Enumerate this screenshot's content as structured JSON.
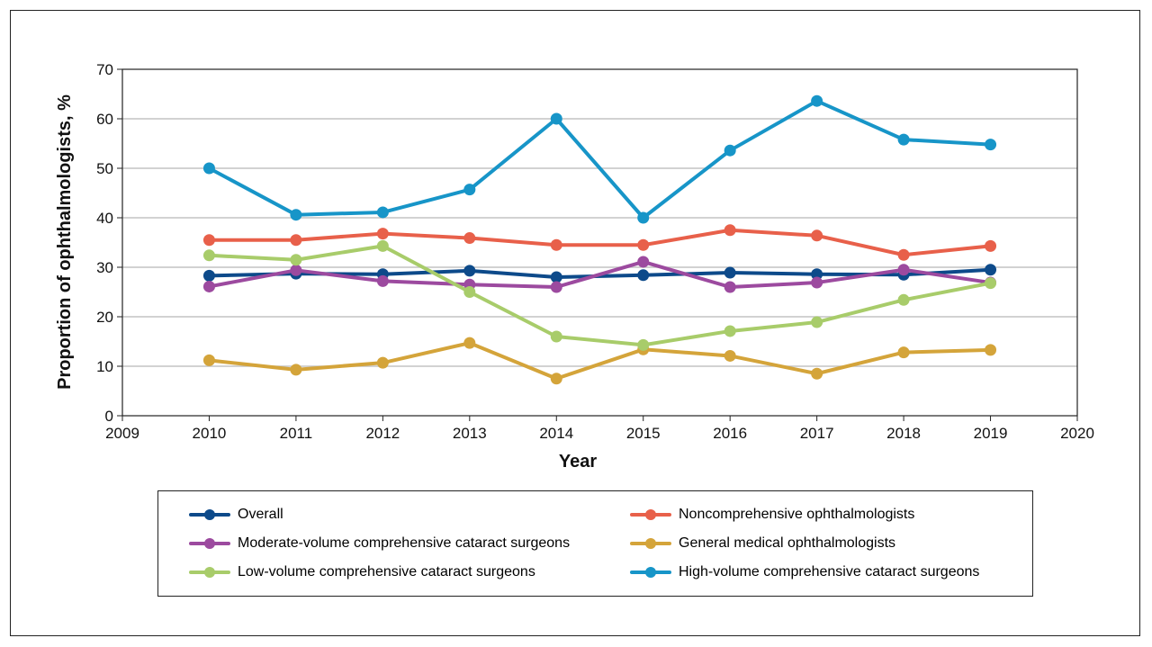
{
  "chart_data": {
    "type": "line",
    "title": "",
    "xlabel": "Year",
    "ylabel": "Proportion of ophthalmologists, %",
    "xlim": [
      2009,
      2020
    ],
    "ylim": [
      0,
      70
    ],
    "x_ticks": [
      2009,
      2010,
      2011,
      2012,
      2013,
      2014,
      2015,
      2016,
      2017,
      2018,
      2019,
      2020
    ],
    "y_ticks": [
      0,
      10,
      20,
      30,
      40,
      50,
      60,
      70
    ],
    "grid": "horizontal",
    "legend_position": "bottom",
    "x": [
      2010,
      2011,
      2012,
      2013,
      2014,
      2015,
      2016,
      2017,
      2018,
      2019
    ],
    "series": [
      {
        "name": "Overall",
        "color": "#0d4a8a",
        "values": [
          28.3,
          28.7,
          28.6,
          29.3,
          28.0,
          28.4,
          28.9,
          28.6,
          28.5,
          29.5
        ]
      },
      {
        "name": "Noncomprehensive ophthalmologists",
        "color": "#e8604a",
        "values": [
          35.5,
          35.5,
          36.8,
          35.9,
          34.5,
          34.5,
          37.5,
          36.4,
          32.5,
          34.3
        ]
      },
      {
        "name": "Moderate-volume comprehensive cataract surgeons",
        "color": "#9c4a9f",
        "values": [
          26.1,
          29.4,
          27.2,
          26.5,
          26.0,
          31.1,
          26.0,
          26.9,
          29.5,
          26.9
        ]
      },
      {
        "name": "General medical ophthalmologists",
        "color": "#d4a43a",
        "values": [
          11.2,
          9.3,
          10.7,
          14.7,
          7.5,
          13.4,
          12.1,
          8.5,
          12.8,
          13.3
        ]
      },
      {
        "name": "Low-volume comprehensive cataract surgeons",
        "color": "#a8cc6a",
        "values": [
          32.4,
          31.5,
          34.3,
          25.0,
          16.0,
          14.3,
          17.1,
          18.9,
          23.4,
          26.8
        ]
      },
      {
        "name": "High-volume comprehensive cataract surgeons",
        "color": "#1795c8",
        "values": [
          50.0,
          40.6,
          41.1,
          45.7,
          60.0,
          40.0,
          53.6,
          63.6,
          55.8,
          54.8
        ]
      }
    ]
  },
  "legend": {
    "items": [
      {
        "label": "Overall",
        "color": "#0d4a8a"
      },
      {
        "label": "Noncomprehensive ophthalmologists",
        "color": "#e8604a"
      },
      {
        "label": "Moderate-volume comprehensive cataract surgeons",
        "color": "#9c4a9f"
      },
      {
        "label": "General medical ophthalmologists",
        "color": "#d4a43a"
      },
      {
        "label": "Low-volume comprehensive cataract surgeons",
        "color": "#a8cc6a"
      },
      {
        "label": "High-volume comprehensive cataract surgeons",
        "color": "#1795c8"
      }
    ]
  }
}
